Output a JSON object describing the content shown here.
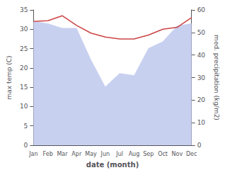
{
  "chart_data": {
    "type": "line",
    "categories": [
      "Jan",
      "Feb",
      "Mar",
      "Apr",
      "May",
      "Jun",
      "Jul",
      "Aug",
      "Sep",
      "Oct",
      "Nov",
      "Dec"
    ],
    "series": [
      {
        "type": "area",
        "axis": "y2",
        "color": "#c8d0f0",
        "values": [
          55.0,
          54.0,
          52.0,
          52.0,
          38.0,
          26.0,
          32.0,
          31.0,
          43.0,
          46.0,
          53.0,
          54.0
        ]
      },
      {
        "type": "line",
        "color": "#cc4444",
        "values": [
          32.0,
          32.2,
          33.5,
          31.0,
          29.0,
          28.0,
          27.5,
          27.5,
          28.5,
          30.0,
          30.5,
          33.0
        ]
      }
    ],
    "xlabel": "date (month)",
    "ylabel": "max temp (C)",
    "y2label": "med. precipitation (kg/m2)",
    "ylim": [
      0,
      35
    ],
    "yticks": [
      0,
      5,
      10,
      15,
      20,
      25,
      30,
      35
    ],
    "y2lim": [
      0,
      60
    ],
    "y2ticks": [
      0,
      10,
      20,
      30,
      40,
      50,
      60
    ],
    "grid": false
  }
}
